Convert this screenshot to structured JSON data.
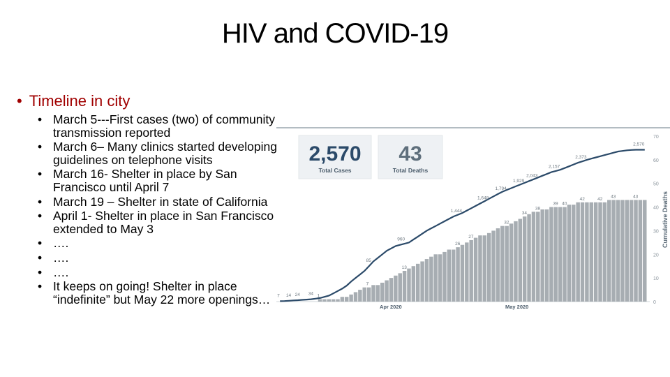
{
  "slide": {
    "title": "HIV and COVID-19",
    "bullet": "Timeline in city",
    "items": [
      "March 5---First cases (two) of community transmission reported",
      "March 6– Many clinics started developing guidelines on telephone visits",
      "March 16- Shelter in place by San Francisco until April 7",
      "March 19 – Shelter in state of California",
      "April 1- Shelter in place in San Francisco extended to May 3",
      "….",
      "….",
      "….",
      "It keeps on going! Shelter in place “indefinite” but May 22 more openings…"
    ]
  },
  "chart_data": {
    "type": "bar+line",
    "kpis": [
      {
        "value": "2,570",
        "label": "Total Cases"
      },
      {
        "value": "43",
        "label": "Total Deaths"
      }
    ],
    "x_labels": [
      "Apr 2020",
      "May 2020"
    ],
    "y_right": {
      "label": "Cumulative Deaths",
      "ticks": [
        "70",
        "60",
        "50",
        "40",
        "30",
        "20",
        "10",
        "0"
      ],
      "range": [
        0,
        70
      ]
    },
    "y_left_range": [
      0,
      2800
    ],
    "bars_cumulative_deaths": [
      0,
      0,
      0,
      0,
      0,
      0,
      0,
      0,
      0,
      1,
      1,
      1,
      1,
      1,
      2,
      2,
      3,
      4,
      5,
      6,
      6,
      7,
      7,
      8,
      9,
      10,
      11,
      12,
      13,
      14,
      15,
      16,
      17,
      18,
      19,
      20,
      20,
      21,
      22,
      22,
      23,
      24,
      25,
      26,
      27,
      28,
      28,
      29,
      30,
      31,
      32,
      32,
      33,
      34,
      35,
      36,
      37,
      38,
      38,
      39,
      39,
      40,
      40,
      40,
      40,
      41,
      41,
      42,
      42,
      42,
      42,
      42,
      42,
      42,
      43,
      43,
      43,
      43,
      43,
      43,
      43,
      43,
      43
    ],
    "line_cumulative_cases": [
      7,
      10,
      14,
      20,
      24,
      30,
      34,
      40,
      50,
      60,
      80,
      100,
      140,
      180,
      220,
      270,
      340,
      400,
      460,
      520,
      600,
      680,
      740,
      800,
      860,
      900,
      940,
      960,
      980,
      1000,
      1050,
      1100,
      1150,
      1200,
      1240,
      1280,
      1320,
      1360,
      1400,
      1440,
      1470,
      1500,
      1540,
      1580,
      1620,
      1660,
      1700,
      1740,
      1780,
      1820,
      1860,
      1890,
      1920,
      1950,
      1980,
      2010,
      2040,
      2070,
      2100,
      2130,
      2160,
      2190,
      2210,
      2230,
      2260,
      2290,
      2320,
      2350,
      2373,
      2400,
      2420,
      2440,
      2460,
      2480,
      2500,
      2520,
      2540,
      2550,
      2560,
      2566,
      2570,
      2570,
      2570
    ],
    "annotations_cases": [
      "7",
      "14",
      "24",
      "34",
      "85",
      "960",
      "1,444",
      "1,648",
      "1,794",
      "1,929",
      "2,043",
      "2,157",
      "2,373",
      "2,570"
    ],
    "annotations_deaths": [
      "1",
      "7",
      "13",
      "26",
      "27",
      "32",
      "34",
      "38",
      "39",
      "40",
      "42",
      "42",
      "43",
      "43"
    ]
  }
}
